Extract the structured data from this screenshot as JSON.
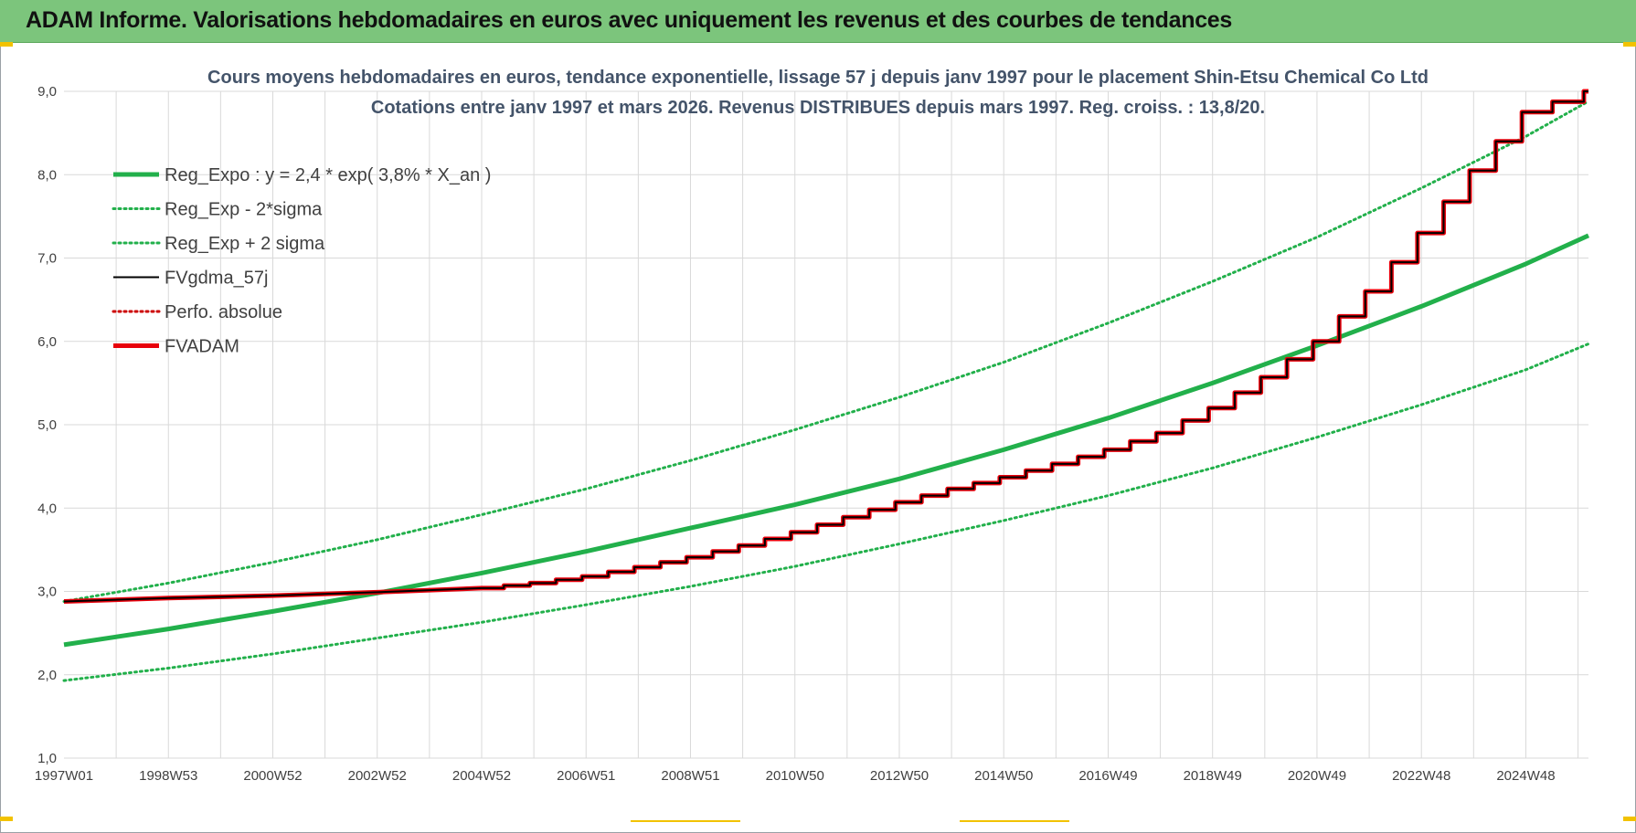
{
  "header": {
    "title": "ADAM Informe. Valorisations hebdomadaires en euros avec uniquement les revenus et des courbes de tendances"
  },
  "colors": {
    "header_bg": "#7cc57c",
    "trend_green": "#22b04b",
    "fv_black": "#000000",
    "fvadam_red": "#e8000b",
    "perfo_red": "#cc0000",
    "title_text": "#44546a",
    "grid": "#d9d9d9"
  },
  "chart_data": {
    "type": "line",
    "title": "Cours moyens hebdomadaires en euros, tendance exponentielle, lissage 57 j depuis janv 1997 pour le placement Shin-Etsu Chemical Co Ltd",
    "subtitle": "Cotations entre janv 1997 et mars 2026. Revenus DISTRIBUES depuis mars 1997. Reg. croiss. : 13,8/20.",
    "x_start": "1997W01",
    "x_end": "2026W12",
    "xlim": [
      1997.0,
      2026.2
    ],
    "ylim": [
      1.0,
      9.0
    ],
    "y_ticks": [
      "1,0",
      "2,0",
      "3,0",
      "4,0",
      "5,0",
      "6,0",
      "7,0",
      "8,0",
      "9,0"
    ],
    "x_tick_labels": [
      "1997W01",
      "1998W53",
      "2000W52",
      "2002W52",
      "2004W52",
      "2006W51",
      "2008W51",
      "2010W50",
      "2012W50",
      "2014W50",
      "2016W49",
      "2018W49",
      "2020W49",
      "2022W48",
      "2024W48"
    ],
    "x_ticks": [
      1997.0,
      1999.0,
      2001.0,
      2003.0,
      2005.0,
      2007.0,
      2009.0,
      2011.0,
      2013.0,
      2015.0,
      2017.0,
      2019.0,
      2021.0,
      2023.0,
      2025.0
    ],
    "grid": true,
    "legend_position": "top-left",
    "legend": [
      {
        "label": "Reg_Expo : y = 2,4 * exp( 3,8% *  X_an )",
        "color": "#22b04b",
        "style": "solid-thick"
      },
      {
        "label": "Reg_Exp - 2*sigma",
        "color": "#22b04b",
        "style": "dotted"
      },
      {
        "label": "Reg_Exp + 2 sigma",
        "color": "#22b04b",
        "style": "dotted"
      },
      {
        "label": "FVgdma_57j",
        "color": "#000000",
        "style": "solid-thin"
      },
      {
        "label": "Perfo. absolue",
        "color": "#cc0000",
        "style": "dotted"
      },
      {
        "label": "FVADAM",
        "color": "#e8000b",
        "style": "solid-thick"
      }
    ],
    "series": [
      {
        "name": "Reg_Expo : y = 2,4 * exp( 3,8% *  X_an )",
        "x": [
          1997.0,
          1999.0,
          2001.0,
          2003.0,
          2005.0,
          2007.0,
          2009.0,
          2011.0,
          2013.0,
          2015.0,
          2017.0,
          2019.0,
          2021.0,
          2023.0,
          2025.0,
          2026.2
        ],
        "values": [
          2.36,
          2.55,
          2.76,
          2.98,
          3.22,
          3.48,
          3.76,
          4.04,
          4.35,
          4.7,
          5.08,
          5.5,
          5.95,
          6.42,
          6.93,
          7.27
        ]
      },
      {
        "name": "Reg_Exp - 2*sigma",
        "x": [
          1997.0,
          1999.0,
          2001.0,
          2003.0,
          2005.0,
          2007.0,
          2009.0,
          2011.0,
          2013.0,
          2015.0,
          2017.0,
          2019.0,
          2021.0,
          2023.0,
          2025.0,
          2026.2
        ],
        "values": [
          1.93,
          2.08,
          2.25,
          2.44,
          2.63,
          2.84,
          3.06,
          3.3,
          3.57,
          3.85,
          4.15,
          4.48,
          4.85,
          5.24,
          5.66,
          5.97
        ]
      },
      {
        "name": "Reg_Exp + 2 sigma",
        "x": [
          1997.0,
          1999.0,
          2001.0,
          2003.0,
          2005.0,
          2007.0,
          2009.0,
          2011.0,
          2013.0,
          2015.0,
          2017.0,
          2019.0,
          2021.0,
          2023.0,
          2025.0,
          2026.2
        ],
        "values": [
          2.88,
          3.1,
          3.35,
          3.62,
          3.92,
          4.23,
          4.57,
          4.94,
          5.33,
          5.75,
          6.22,
          6.72,
          7.25,
          7.84,
          8.46,
          8.88
        ]
      },
      {
        "name": "FVADAM",
        "x": [
          1997.0,
          1999.0,
          2001.0,
          2003.0,
          2005.0,
          2006.0,
          2007.0,
          2008.0,
          2009.0,
          2010.0,
          2011.0,
          2012.0,
          2013.0,
          2014.0,
          2015.0,
          2016.0,
          2017.0,
          2018.0,
          2019.0,
          2020.0,
          2021.0,
          2022.0,
          2023.0,
          2024.0,
          2025.0,
          2026.2
        ],
        "values": [
          2.88,
          2.92,
          2.95,
          2.99,
          3.04,
          3.1,
          3.18,
          3.29,
          3.41,
          3.55,
          3.71,
          3.89,
          4.07,
          4.23,
          4.37,
          4.53,
          4.7,
          4.9,
          5.2,
          5.57,
          6.0,
          6.6,
          7.3,
          8.05,
          8.75,
          9.0
        ]
      },
      {
        "name": "FVgdma_57j",
        "x": [
          1997.0,
          1999.0,
          2001.0,
          2003.0,
          2005.0,
          2006.0,
          2007.0,
          2008.0,
          2009.0,
          2010.0,
          2011.0,
          2012.0,
          2013.0,
          2014.0,
          2015.0,
          2016.0,
          2017.0,
          2018.0,
          2019.0,
          2020.0,
          2021.0,
          2022.0,
          2023.0,
          2024.0,
          2025.0,
          2026.2
        ],
        "values": [
          2.88,
          2.92,
          2.95,
          2.99,
          3.04,
          3.1,
          3.18,
          3.29,
          3.41,
          3.55,
          3.71,
          3.89,
          4.07,
          4.23,
          4.37,
          4.53,
          4.7,
          4.9,
          5.2,
          5.57,
          6.0,
          6.6,
          7.3,
          8.05,
          8.75,
          9.0
        ]
      }
    ]
  }
}
